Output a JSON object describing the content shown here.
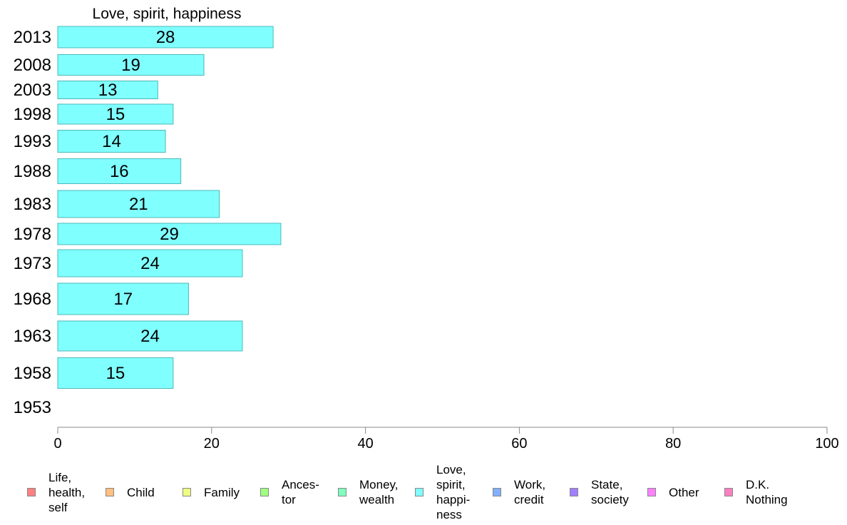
{
  "chart_data": {
    "type": "bar",
    "orientation": "horizontal",
    "title": "Love, spirit, happiness",
    "categories": [
      "2013",
      "2008",
      "2003",
      "1998",
      "1993",
      "1988",
      "1983",
      "1978",
      "1973",
      "1968",
      "1963",
      "1958",
      "1953"
    ],
    "values": [
      28,
      19,
      13,
      15,
      14,
      16,
      21,
      29,
      24,
      17,
      24,
      15,
      null
    ],
    "bar_color": "#80ffff",
    "bar_stroke": "#4cb8b8",
    "xlim": [
      0,
      100
    ],
    "xticks": [
      0,
      20,
      40,
      60,
      80,
      100
    ],
    "xlabel": "",
    "ylabel": "",
    "grid": false,
    "legend_position": "bottom",
    "legend": [
      {
        "label": "Life,\nhealth,\nself",
        "color": "#ff8080"
      },
      {
        "label": "Child",
        "color": "#ffc080"
      },
      {
        "label": "Family",
        "color": "#f0ff80"
      },
      {
        "label": "Ances-\ntor",
        "color": "#a0ff80"
      },
      {
        "label": "Money,\nwealth",
        "color": "#80ffc0"
      },
      {
        "label": "Love,\nspirit,\nhappi-\nness",
        "color": "#80ffff"
      },
      {
        "label": "Work,\ncredit",
        "color": "#80b0ff"
      },
      {
        "label": "State,\nsociety",
        "color": "#a080ff"
      },
      {
        "label": "Other",
        "color": "#ff80ff"
      },
      {
        "label": "D.K.\nNothing",
        "color": "#ff80c0"
      }
    ]
  }
}
